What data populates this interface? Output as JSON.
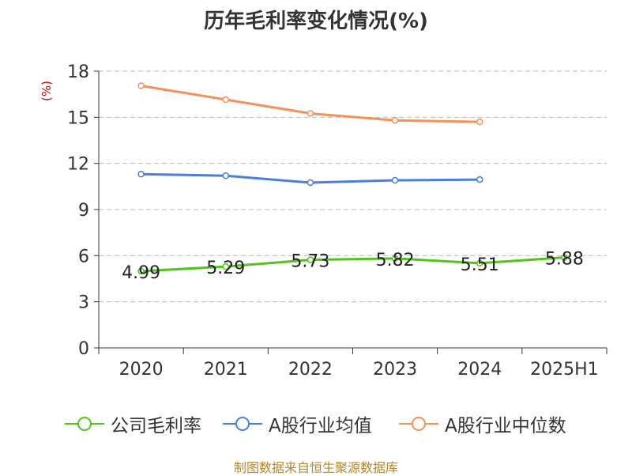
{
  "title": "历年毛利率变化情况(%)",
  "y_unit": "(%)",
  "source": "制图数据来自恒生聚源数据库",
  "colors": {
    "company": "#52c41a",
    "industry_avg": "#4a7fdb",
    "industry_median": "#f5915a",
    "axis": "#333333",
    "grid": "#bbbbbb",
    "source_text": "#b8862b"
  },
  "legend": {
    "company": "公司毛利率",
    "industry_avg": "A股行业均值",
    "industry_median": "A股行业中位数"
  },
  "chart_data": {
    "type": "line",
    "title": "历年毛利率变化情况(%)",
    "ylabel": "(%)",
    "categories": [
      "2020",
      "2021",
      "2022",
      "2023",
      "2024",
      "2025H1"
    ],
    "ylim": [
      0,
      18
    ],
    "yticks": [
      0,
      3,
      6,
      9,
      12,
      15,
      18
    ],
    "grid": true,
    "legend_position": "bottom",
    "series": [
      {
        "key": "company",
        "name": "公司毛利率",
        "values": [
          4.99,
          5.29,
          5.73,
          5.82,
          5.51,
          5.88
        ],
        "labels": [
          "4.99",
          "5.29",
          "5.73",
          "5.82",
          "5.51",
          "5.88"
        ],
        "show_labels": true
      },
      {
        "key": "industry_avg",
        "name": "A股行业均值",
        "values": [
          11.3,
          11.2,
          10.75,
          10.9,
          10.95,
          null
        ],
        "show_labels": false
      },
      {
        "key": "industry_median",
        "name": "A股行业中位数",
        "values": [
          17.05,
          16.15,
          15.25,
          14.8,
          14.7,
          null
        ],
        "show_labels": false
      }
    ]
  }
}
